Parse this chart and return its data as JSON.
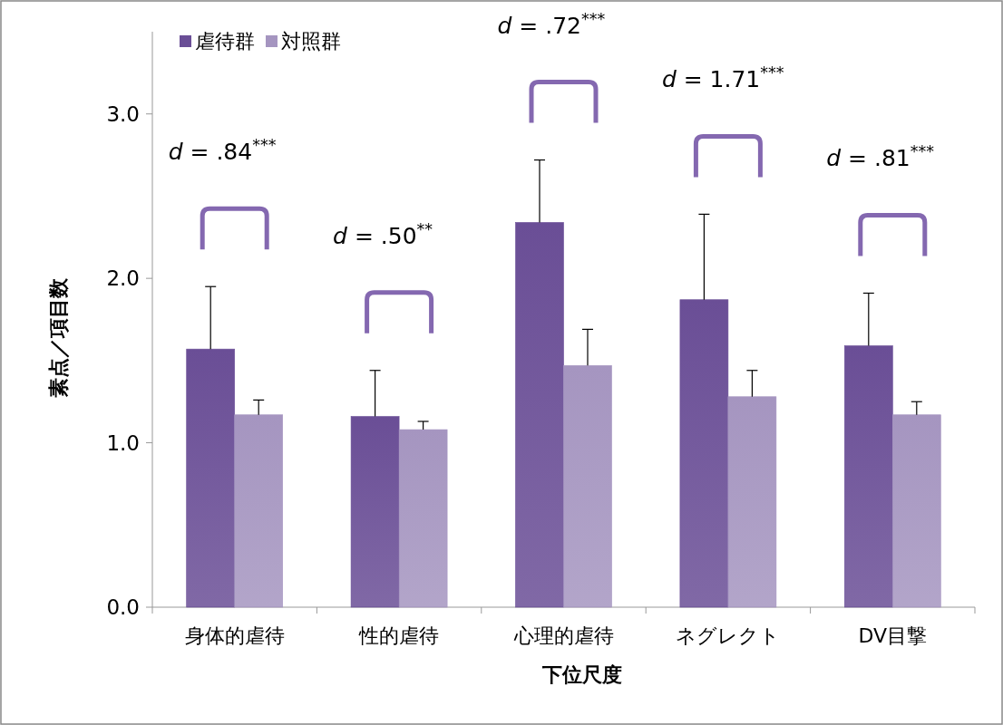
{
  "chart_data": {
    "type": "bar",
    "xlabel": "下位尺度",
    "ylabel": "素点／項目数",
    "categories": [
      "身体的虐待",
      "性的虐待",
      "心理的虐待",
      "ネグレクト",
      "DV目撃"
    ],
    "series": [
      {
        "name": "虐待群",
        "color": "#6a4e96",
        "values": [
          1.57,
          1.16,
          2.34,
          1.87,
          1.59
        ],
        "errors": [
          [
            1.57,
            1.95
          ],
          [
            1.16,
            1.44
          ],
          [
            2.34,
            2.72
          ],
          [
            1.87,
            2.39
          ],
          [
            1.59,
            1.91
          ]
        ]
      },
      {
        "name": "対照群",
        "color": "#a595c0",
        "values": [
          1.17,
          1.08,
          1.47,
          1.28,
          1.17
        ],
        "errors": [
          [
            1.17,
            1.26
          ],
          [
            1.08,
            1.13
          ],
          [
            1.47,
            1.69
          ],
          [
            1.28,
            1.44
          ],
          [
            1.17,
            1.25
          ]
        ]
      }
    ],
    "ylim": [
      0,
      3.5
    ],
    "yticks": [
      {
        "value": 0,
        "label": "0.0"
      },
      {
        "value": 1,
        "label": "1.0"
      },
      {
        "value": 2,
        "label": "2.0"
      },
      {
        "value": 3,
        "label": "3.0"
      }
    ],
    "grid": false,
    "legend": "top left",
    "annotations": [
      "d = .84$^{***}$",
      "d = .50$^{**}$",
      "d = .72$^{***}$",
      "d = 1.71$^{***}$",
      "d = .81$^{***}$"
    ]
  }
}
